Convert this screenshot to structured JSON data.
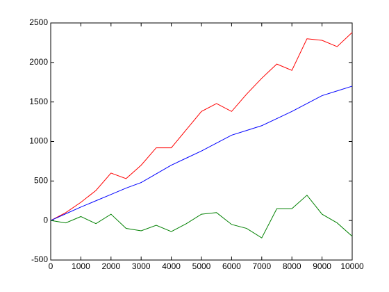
{
  "chart_data": {
    "type": "line",
    "x": [
      0,
      500,
      1000,
      1500,
      2000,
      2500,
      3000,
      3500,
      4000,
      4500,
      5000,
      5500,
      6000,
      6500,
      7000,
      7500,
      8000,
      8500,
      9000,
      9500,
      10000
    ],
    "series": [
      {
        "color": "#ff0000",
        "values": [
          0,
          100,
          230,
          380,
          600,
          530,
          700,
          920,
          920,
          1150,
          1380,
          1480,
          1380,
          1600,
          1800,
          1980,
          1900,
          2300,
          2280,
          2200,
          2380
        ]
      },
      {
        "color": "#0000ff",
        "values": [
          0,
          85,
          170,
          250,
          330,
          410,
          480,
          590,
          700,
          790,
          880,
          980,
          1080,
          1140,
          1200,
          1290,
          1380,
          1480,
          1580,
          1640,
          1700
        ]
      },
      {
        "color": "#008000",
        "values": [
          0,
          -30,
          50,
          -40,
          80,
          -100,
          -130,
          -60,
          -140,
          -40,
          80,
          100,
          -50,
          -100,
          -220,
          150,
          150,
          320,
          80,
          -30,
          -200
        ]
      }
    ],
    "xlim": [
      0,
      10000
    ],
    "xticks": [
      0,
      1000,
      2000,
      3000,
      4000,
      5000,
      6000,
      7000,
      8000,
      9000,
      10000
    ],
    "ylim": [
      -500,
      2500
    ],
    "yticks": [
      -500,
      0,
      500,
      1000,
      1500,
      2000,
      2500
    ],
    "grid": false
  }
}
